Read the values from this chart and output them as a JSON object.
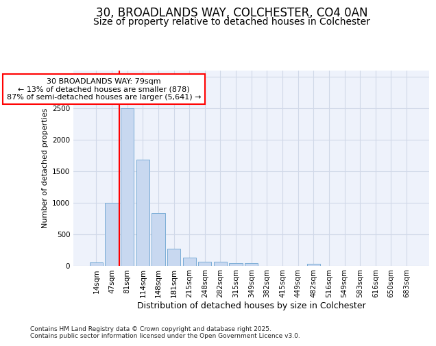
{
  "title1": "30, BROADLANDS WAY, COLCHESTER, CO4 0AN",
  "title2": "Size of property relative to detached houses in Colchester",
  "xlabel": "Distribution of detached houses by size in Colchester",
  "ylabel": "Number of detached properties",
  "categories": [
    "14sqm",
    "47sqm",
    "81sqm",
    "114sqm",
    "148sqm",
    "181sqm",
    "215sqm",
    "248sqm",
    "282sqm",
    "315sqm",
    "349sqm",
    "382sqm",
    "415sqm",
    "449sqm",
    "482sqm",
    "516sqm",
    "549sqm",
    "583sqm",
    "616sqm",
    "650sqm",
    "683sqm"
  ],
  "values": [
    50,
    1000,
    2500,
    1680,
    830,
    270,
    130,
    55,
    55,
    40,
    35,
    0,
    0,
    0,
    30,
    0,
    0,
    0,
    0,
    0,
    0
  ],
  "bar_color": "#c8d8f0",
  "bar_edge_color": "#7aacd6",
  "red_line_x": 2,
  "annotation_text": "30 BROADLANDS WAY: 79sqm\n← 13% of detached houses are smaller (878)\n87% of semi-detached houses are larger (5,641) →",
  "ylim": [
    0,
    3100
  ],
  "yticks": [
    0,
    500,
    1000,
    1500,
    2000,
    2500,
    3000
  ],
  "grid_color": "#d0d8e8",
  "bg_color": "#eef2fb",
  "footer_text": "Contains HM Land Registry data © Crown copyright and database right 2025.\nContains public sector information licensed under the Open Government Licence v3.0.",
  "title1_fontsize": 12,
  "title2_fontsize": 10,
  "ylabel_fontsize": 8,
  "xlabel_fontsize": 9,
  "tick_fontsize": 7.5,
  "ann_fontsize": 8,
  "footer_fontsize": 6.5
}
